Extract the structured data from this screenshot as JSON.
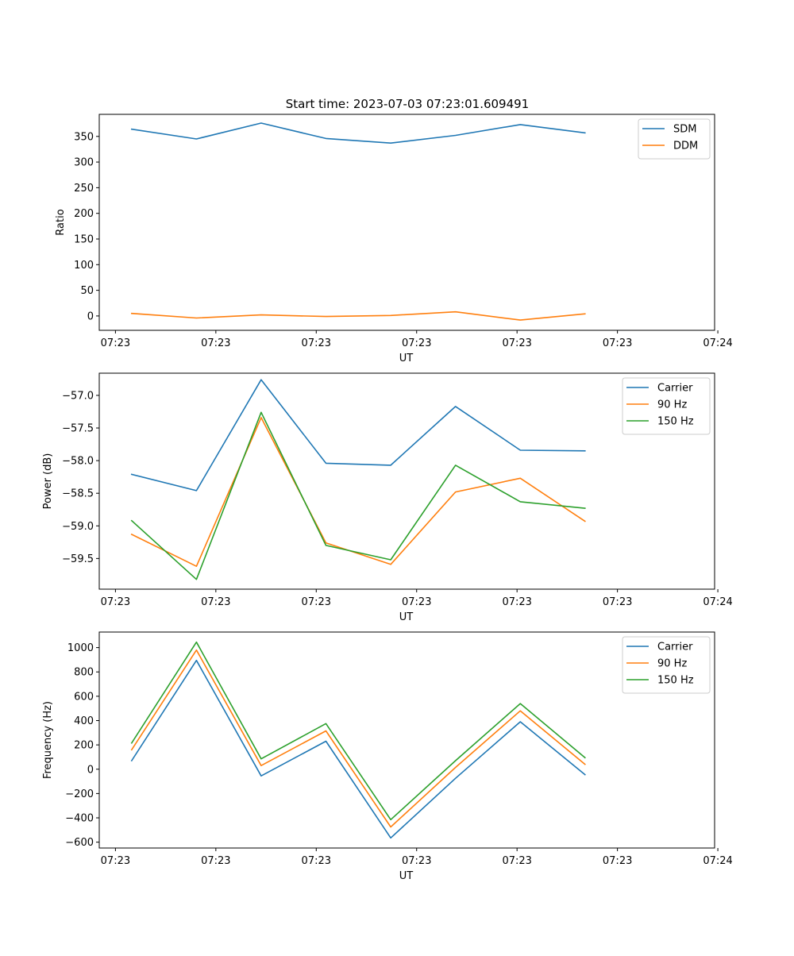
{
  "figure": {
    "title": "Start time: 2023-07-03 07:23:01.609491"
  },
  "colors": {
    "blue": "#1f77b4",
    "orange": "#ff7f0e",
    "green": "#2ca02c"
  },
  "chart_data": [
    {
      "type": "line",
      "title": "Start time: 2023-07-03 07:23:01.609491",
      "xlabel": "UT",
      "ylabel": "Ratio",
      "xlim": [
        -0.5,
        9.0
      ],
      "ylim": [
        -28,
        393
      ],
      "xticks": [
        {
          "pos": -0.25,
          "label": "07:23"
        },
        {
          "pos": 1.3,
          "label": "07:23"
        },
        {
          "pos": 2.85,
          "label": "07:23"
        },
        {
          "pos": 4.4,
          "label": "07:23"
        },
        {
          "pos": 5.95,
          "label": "07:23"
        },
        {
          "pos": 7.5,
          "label": "07:23"
        },
        {
          "pos": 9.05,
          "label": "07:24"
        }
      ],
      "yticks": [
        0,
        50,
        100,
        150,
        200,
        250,
        300,
        350
      ],
      "legend_position": "top-right",
      "x": [
        0,
        1,
        2,
        3,
        4,
        5,
        6,
        7
      ],
      "series": [
        {
          "name": "SDM",
          "color": "blue",
          "values": [
            364,
            345,
            376,
            346,
            337,
            352,
            373,
            357
          ]
        },
        {
          "name": "DDM",
          "color": "orange",
          "values": [
            5,
            -4,
            2,
            -1,
            1,
            8,
            -8,
            4
          ]
        }
      ]
    },
    {
      "type": "line",
      "title": "",
      "xlabel": "UT",
      "ylabel": "Power (dB)",
      "xlim": [
        -0.5,
        9.0
      ],
      "ylim": [
        -59.97,
        -56.66
      ],
      "xticks": [
        {
          "pos": -0.25,
          "label": "07:23"
        },
        {
          "pos": 1.3,
          "label": "07:23"
        },
        {
          "pos": 2.85,
          "label": "07:23"
        },
        {
          "pos": 4.4,
          "label": "07:23"
        },
        {
          "pos": 5.95,
          "label": "07:23"
        },
        {
          "pos": 7.5,
          "label": "07:23"
        },
        {
          "pos": 9.05,
          "label": "07:24"
        }
      ],
      "yticks": [
        -59.5,
        -59.0,
        -58.5,
        -58.0,
        -57.5,
        -57.0
      ],
      "ytick_labels": [
        "−59.5",
        "−59.0",
        "−58.5",
        "−58.0",
        "−57.5",
        "−57.0"
      ],
      "legend_position": "top-right",
      "x": [
        0,
        1,
        2,
        3,
        4,
        5,
        6,
        7
      ],
      "series": [
        {
          "name": "Carrier",
          "color": "blue",
          "values": [
            -58.21,
            -58.46,
            -56.76,
            -58.04,
            -58.07,
            -57.17,
            -57.84,
            -57.85
          ]
        },
        {
          "name": "90 Hz",
          "color": "orange",
          "values": [
            -59.13,
            -59.62,
            -57.34,
            -59.26,
            -59.59,
            -58.48,
            -58.27,
            -58.93
          ]
        },
        {
          "name": "150 Hz",
          "color": "green",
          "values": [
            -58.92,
            -59.82,
            -57.26,
            -59.3,
            -59.52,
            -58.07,
            -58.63,
            -58.73
          ]
        }
      ]
    },
    {
      "type": "line",
      "title": "",
      "xlabel": "UT",
      "ylabel": "Frequency (Hz)",
      "xlim": [
        -0.5,
        9.0
      ],
      "ylim": [
        -648,
        1128
      ],
      "xticks": [
        {
          "pos": -0.25,
          "label": "07:23"
        },
        {
          "pos": 1.3,
          "label": "07:23"
        },
        {
          "pos": 2.85,
          "label": "07:23"
        },
        {
          "pos": 4.4,
          "label": "07:23"
        },
        {
          "pos": 5.95,
          "label": "07:23"
        },
        {
          "pos": 7.5,
          "label": "07:23"
        },
        {
          "pos": 9.05,
          "label": "07:24"
        }
      ],
      "yticks": [
        -600,
        -400,
        -200,
        0,
        200,
        400,
        600,
        800,
        1000
      ],
      "ytick_labels": [
        "−600",
        "−400",
        "−200",
        "0",
        "200",
        "400",
        "600",
        "800",
        "1000"
      ],
      "legend_position": "top-right",
      "x": [
        0,
        1,
        2,
        3,
        4,
        5,
        6,
        7
      ],
      "series": [
        {
          "name": "Carrier",
          "color": "blue",
          "values": [
            70,
            895,
            -55,
            230,
            -565,
            -75,
            390,
            -45
          ]
        },
        {
          "name": "90 Hz",
          "color": "orange",
          "values": [
            160,
            980,
            30,
            315,
            -475,
            15,
            480,
            40
          ]
        },
        {
          "name": "150 Hz",
          "color": "green",
          "values": [
            215,
            1045,
            85,
            375,
            -415,
            70,
            540,
            95
          ]
        }
      ]
    }
  ]
}
